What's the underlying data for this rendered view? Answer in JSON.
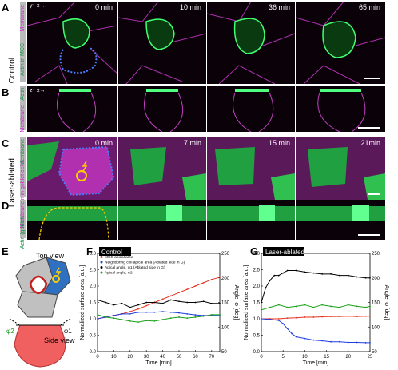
{
  "panels": {
    "A": {
      "letter": "A",
      "times": [
        "0 min",
        "10 min",
        "36 min",
        "65 min"
      ],
      "label_membrane": "Membrane",
      "label_actin": "Actin in MCC"
    },
    "B": {
      "letter": "B",
      "label_actin": "Actin",
      "label_membrane": "Membrane"
    },
    "C": {
      "letter": "C",
      "times": [
        "0 min",
        "7 min",
        "15 min",
        "21min"
      ],
      "label_membrane": "Membrane",
      "label_actin": "Actin in goblet cells"
    },
    "D": {
      "letter": "D",
      "label_actin": "Actin (goblet)",
      "label_membrane": "Membrane"
    },
    "E": {
      "letter": "E",
      "top_view": "Top view",
      "side_view": "Side view",
      "phi2": "φ2",
      "phi1": "φ1"
    },
    "F": {
      "letter": "F",
      "title": "Control"
    },
    "G": {
      "letter": "G",
      "title": "Laser-ablated"
    }
  },
  "row_labels": {
    "control": "Control",
    "laser": "Laser-ablated"
  },
  "axis_icons": {
    "xy": "y↑ x→",
    "xz": "z↑ x→"
  },
  "colors": {
    "membrane": "#e040e0",
    "actin": "#30d060",
    "outline": "#4a7dff",
    "lesion": "#ffd000",
    "red": "#e8321e",
    "blue": "#1f3fe0",
    "black": "#000000",
    "green": "#1aa01a"
  },
  "legend_F": [
    {
      "label": "MCC apical area",
      "color": "#e8321e"
    },
    {
      "label": "Neighboring cell apical area (Ablated side in G)",
      "color": "#1f3fe0"
    },
    {
      "label": "Apical angle, φ1 (Ablated side in G)",
      "color": "#000000"
    },
    {
      "label": "Apical angle, φ2",
      "color": "#1aa01a"
    }
  ],
  "chart_data": [
    {
      "type": "line",
      "title": "Control",
      "xlabel": "Time [min]",
      "ylabel": "Normalized surface area [a.u.]",
      "y2label": "Angle, φ [deg]",
      "xlim": [
        0,
        75
      ],
      "ylim": [
        0,
        3.0
      ],
      "y2lim": [
        50,
        250
      ],
      "xticks": [
        0,
        10,
        20,
        30,
        40,
        50,
        60,
        70
      ],
      "yticks": [
        0,
        0.5,
        1.0,
        1.5,
        2.0,
        2.5,
        3.0
      ],
      "y2ticks": [
        50,
        100,
        150,
        200,
        250
      ],
      "series": [
        {
          "name": "MCC apical area",
          "axis": "left",
          "color": "#e8321e",
          "x": [
            0,
            5,
            10,
            15,
            20,
            25,
            30,
            35,
            40,
            45,
            50,
            55,
            60,
            65,
            70,
            75
          ],
          "y": [
            1.0,
            1.05,
            1.1,
            1.15,
            1.22,
            1.3,
            1.4,
            1.5,
            1.6,
            1.7,
            1.8,
            1.9,
            2.0,
            2.1,
            2.2,
            2.27
          ]
        },
        {
          "name": "Neighboring cell apical area (Ablated side in G)",
          "axis": "left",
          "color": "#1f3fe0",
          "x": [
            0,
            5,
            10,
            15,
            20,
            25,
            30,
            35,
            40,
            45,
            50,
            55,
            60,
            65,
            70,
            75
          ],
          "y": [
            1.0,
            1.05,
            1.1,
            1.15,
            1.15,
            1.2,
            1.2,
            1.2,
            1.22,
            1.2,
            1.18,
            1.15,
            1.12,
            1.1,
            1.1,
            1.1
          ]
        },
        {
          "name": "Apical angle, φ1 (Ablated side in G)",
          "axis": "right",
          "color": "#000000",
          "x": [
            0,
            5,
            10,
            15,
            20,
            25,
            30,
            35,
            40,
            45,
            50,
            55,
            60,
            65,
            70,
            75
          ],
          "y": [
            155,
            150,
            145,
            148,
            140,
            145,
            150,
            150,
            148,
            155,
            152,
            150,
            150,
            152,
            148,
            148
          ]
        },
        {
          "name": "Apical angle, φ2",
          "axis": "right",
          "color": "#1aa01a",
          "x": [
            0,
            5,
            10,
            15,
            20,
            25,
            30,
            35,
            40,
            45,
            50,
            55,
            60,
            65,
            70,
            75
          ],
          "y": [
            125,
            120,
            118,
            115,
            112,
            110,
            113,
            112,
            115,
            118,
            120,
            118,
            120,
            122,
            125,
            125
          ]
        }
      ]
    },
    {
      "type": "line",
      "title": "Laser-ablated",
      "xlabel": "Time [min]",
      "ylabel": "Normalized surface area [a.u.]",
      "y2label": "Angle, φ [deg]",
      "xlim": [
        0,
        25
      ],
      "ylim": [
        0,
        3.0
      ],
      "y2lim": [
        50,
        250
      ],
      "xticks": [
        0,
        5,
        10,
        15,
        20,
        25
      ],
      "yticks": [
        0,
        0.5,
        1.0,
        1.5,
        2.0,
        2.5,
        3.0
      ],
      "y2ticks": [
        50,
        100,
        150,
        200,
        250
      ],
      "series": [
        {
          "name": "MCC apical area",
          "axis": "left",
          "color": "#e8321e",
          "x": [
            0,
            2,
            4,
            6,
            8,
            10,
            12,
            14,
            16,
            18,
            20,
            22,
            24,
            25
          ],
          "y": [
            1.0,
            1.0,
            1.0,
            1.02,
            1.03,
            1.05,
            1.05,
            1.06,
            1.07,
            1.07,
            1.08,
            1.07,
            1.08,
            1.08
          ]
        },
        {
          "name": "Neighboring cell apical area (Ablated side in G)",
          "axis": "left",
          "color": "#1f3fe0",
          "x": [
            0,
            2,
            4,
            5,
            6,
            7,
            8,
            10,
            12,
            14,
            16,
            18,
            20,
            22,
            24,
            25
          ],
          "y": [
            1.0,
            0.98,
            0.95,
            0.85,
            0.7,
            0.55,
            0.45,
            0.4,
            0.35,
            0.33,
            0.3,
            0.3,
            0.28,
            0.28,
            0.27,
            0.27
          ]
        },
        {
          "name": "Apical angle, φ1 (Ablated side in G)",
          "axis": "right",
          "color": "#000000",
          "x": [
            0,
            1,
            2,
            3,
            4,
            5,
            6,
            8,
            10,
            12,
            14,
            16,
            18,
            20,
            22,
            24,
            25
          ],
          "y": [
            150,
            180,
            195,
            205,
            205,
            210,
            215,
            215,
            212,
            210,
            208,
            208,
            205,
            205,
            202,
            200,
            200
          ]
        },
        {
          "name": "Apical angle, φ2",
          "axis": "right",
          "color": "#1aa01a",
          "x": [
            0,
            2,
            4,
            6,
            8,
            10,
            12,
            14,
            16,
            18,
            20,
            22,
            24,
            25
          ],
          "y": [
            135,
            140,
            145,
            140,
            142,
            145,
            140,
            145,
            142,
            140,
            145,
            142,
            140,
            142
          ]
        }
      ]
    }
  ]
}
